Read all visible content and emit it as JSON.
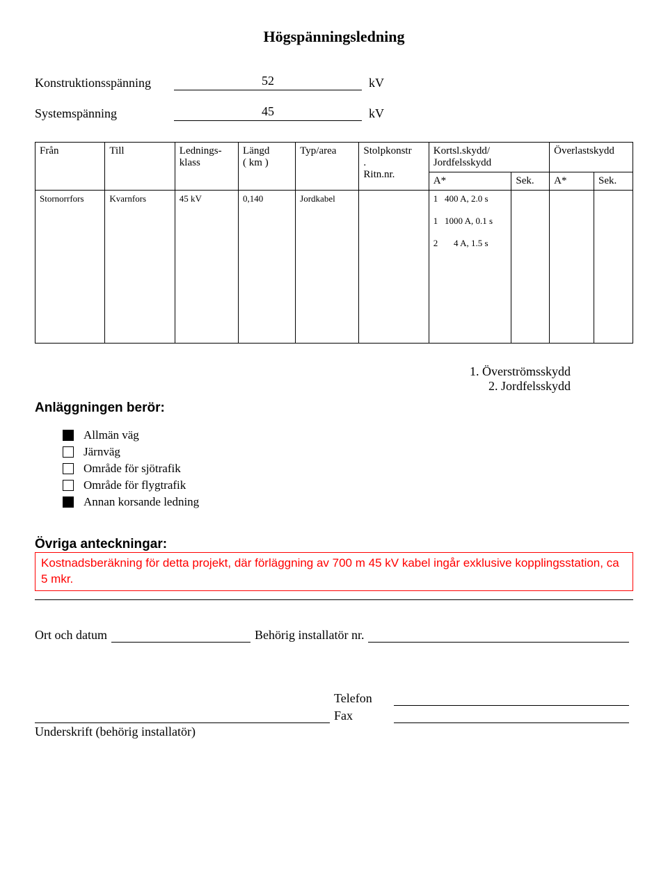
{
  "title": "Högspänningsledning",
  "fields": {
    "konstruktion_label": "Konstruktionsspänning",
    "konstruktion_value": "52",
    "konstruktion_unit": "kV",
    "system_label": "Systemspänning",
    "system_value": "45",
    "system_unit": "kV"
  },
  "table": {
    "headers": {
      "fran": "Från",
      "till": "Till",
      "lednings": "Lednings-\nklass",
      "langd": "Längd\n( km )",
      "typarea": "Typ/area",
      "stolp": "Stolpkonstr\n.\nRitn.nr.",
      "kortsl": "Kortsl.skydd/\nJordfelsskydd",
      "overlast": "Överlastskydd",
      "a1": "A*",
      "sek1": "Sek.",
      "a2": "A*",
      "sek2": "Sek."
    },
    "row": {
      "fran": "Stornorrfors",
      "till": "Kvarnfors",
      "klass": "45 kV",
      "langd": "0,140",
      "typ": "Jordkabel",
      "stolp": "",
      "a1_lines": "1   400 A, 2.0 s\n\n1   1000 A, 0.1 s\n\n2       4 A, 1.5 s",
      "sek1": "",
      "a2": "",
      "sek2": ""
    }
  },
  "legend": {
    "l1": "1. Överströmsskydd",
    "l2": "2. Jordfelsskydd"
  },
  "beror": {
    "heading": "Anläggningen berör:",
    "items": [
      {
        "label": "Allmän väg",
        "checked": true
      },
      {
        "label": "Järnväg",
        "checked": false
      },
      {
        "label": "Område för sjötrafik",
        "checked": false
      },
      {
        "label": "Område för flygtrafik",
        "checked": false
      },
      {
        "label": "Annan korsande ledning",
        "checked": true
      }
    ]
  },
  "notes": {
    "heading": "Övriga anteckningar:",
    "text": "Kostnadsberäkning för detta projekt, där förläggning av 700 m 45 kV kabel ingår exklusive kopplingsstation, ca 5 mkr."
  },
  "signatures": {
    "ort_label": "Ort och datum",
    "inst_label": "Behörig installatör nr.",
    "underskrift_label": "Underskrift (behörig installatör)",
    "telefon_label": "Telefon",
    "fax_label": "Fax"
  },
  "colors": {
    "note_border": "#ff0000",
    "note_text": "#ff0000",
    "text": "#000000",
    "bg": "#ffffff"
  }
}
